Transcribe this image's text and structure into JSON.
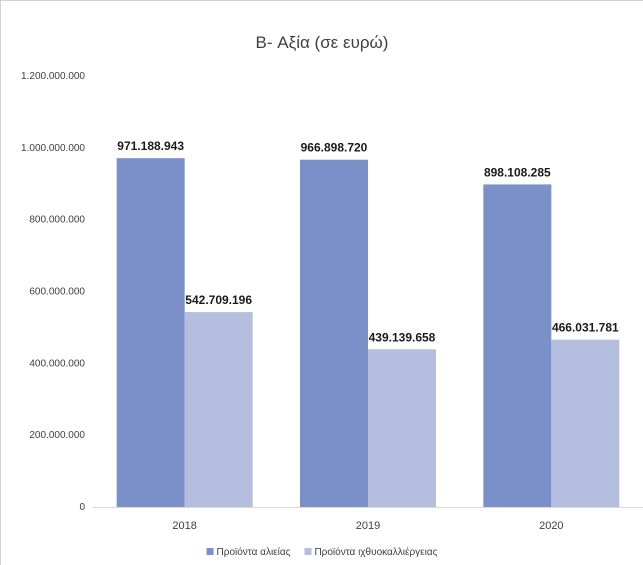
{
  "chart_data": {
    "type": "bar",
    "title": "B- Αξία (σε ευρώ)",
    "xlabel": "",
    "ylabel": "",
    "categories": [
      "2018",
      "2019",
      "2020"
    ],
    "series": [
      {
        "name": "Προϊόντα αλιείας",
        "values": [
          971188943,
          966898720,
          898108285
        ],
        "labels": [
          "971.188.943",
          "966.898.720",
          "898.108.285"
        ],
        "color": "#7b8fc9"
      },
      {
        "name": "Προϊόντα ιχθυοκαλλιέργειας",
        "values": [
          542709196,
          439139658,
          466031781
        ],
        "labels": [
          "542.709.196",
          "439.139.658",
          "466.031.781"
        ],
        "color": "#b4bfe0"
      }
    ],
    "ylim": [
      0,
      1200000000
    ],
    "yticks": [
      0,
      200000000,
      400000000,
      600000000,
      800000000,
      1000000000,
      1200000000
    ],
    "ytick_labels": [
      "0",
      "200.000.000",
      "400.000.000",
      "600.000.000",
      "800.000.000",
      "1.000.000.000",
      "1.200.000.000"
    ],
    "grid": false,
    "legend": "bottom"
  }
}
